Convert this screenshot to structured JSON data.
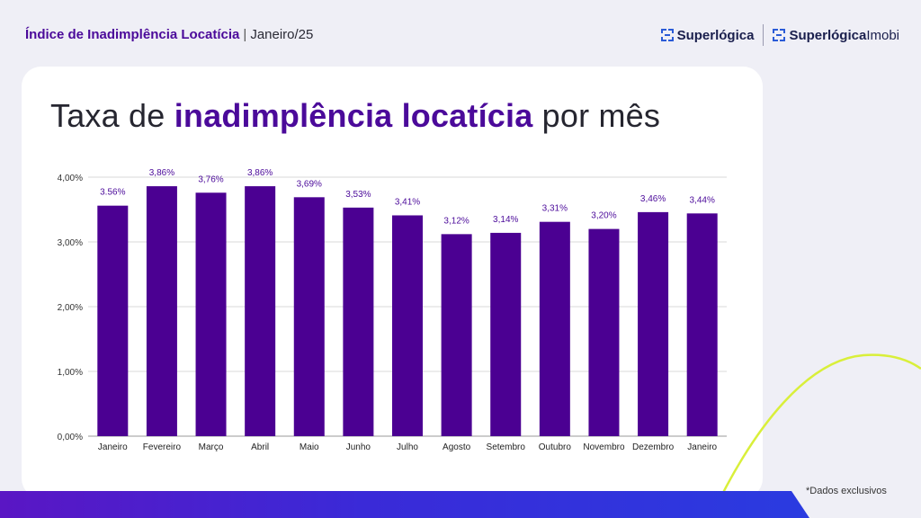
{
  "header": {
    "title_bold": "Índice de Inadimplência Locatícia",
    "separator": "|",
    "title_rest": "Janeiro/25"
  },
  "logos": {
    "logo1": "Superlógica",
    "logo2_bold": "Superlógica",
    "logo2_light": "Imobi",
    "brand_color": "#1a1f4d",
    "mark_color": "#2a5bd7"
  },
  "title": {
    "part1": "Taxa de ",
    "highlight": "inadimplência locatícia",
    "part2": " por mês"
  },
  "footnote": "*Dados exclusivos",
  "colors": {
    "bar": "#4b0092",
    "label": "#4b0a9a",
    "accent_curve": "#d9ef3a",
    "grid": "#d8d8d8"
  },
  "chart_data": {
    "type": "bar",
    "categories": [
      "Janeiro",
      "Fevereiro",
      "Março",
      "Abril",
      "Maio",
      "Junho",
      "Julho",
      "Agosto",
      "Setembro",
      "Outubro",
      "Novembro",
      "Dezembro",
      "Janeiro"
    ],
    "values": [
      3.56,
      3.86,
      3.76,
      3.86,
      3.69,
      3.53,
      3.41,
      3.12,
      3.14,
      3.31,
      3.2,
      3.46,
      3.44
    ],
    "data_labels": [
      "3.56%",
      "3,86%",
      "3,76%",
      "3,86%",
      "3,69%",
      "3,53%",
      "3,41%",
      "3,12%",
      "3,14%",
      "3,31%",
      "3,20%",
      "3,46%",
      "3,44%"
    ],
    "yticks": [
      0,
      1,
      2,
      3,
      4
    ],
    "ytick_labels": [
      "0,00%",
      "1,00%",
      "2,00%",
      "3,00%",
      "4,00%"
    ],
    "ylim": [
      0,
      4
    ],
    "grid": true,
    "legend": "none"
  }
}
